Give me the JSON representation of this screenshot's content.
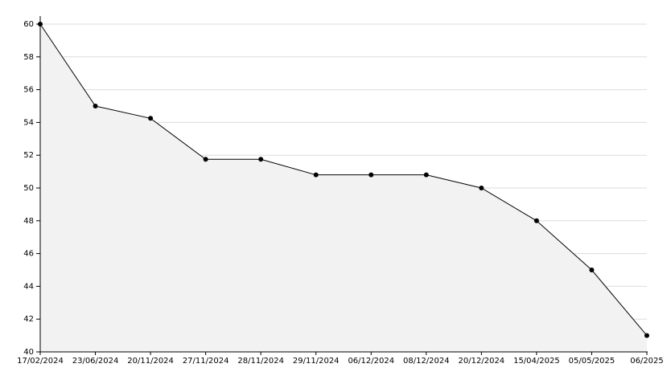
{
  "chart_data": {
    "type": "line",
    "categories": [
      "17/02/2024",
      "23/06/2024",
      "20/11/2024",
      "27/11/2024",
      "28/11/2024",
      "29/11/2024",
      "06/12/2024",
      "08/12/2024",
      "20/12/2024",
      "15/04/2025",
      "05/05/2025",
      "06/2025"
    ],
    "values": [
      60,
      55,
      54.25,
      51.75,
      51.75,
      50.8,
      50.8,
      50.8,
      50,
      48,
      45,
      41
    ],
    "color": "#000000",
    "fill": "#f2f2f2",
    "ylim": [
      40,
      60
    ],
    "yticks": [
      40,
      42,
      44,
      46,
      48,
      50,
      52,
      54,
      56,
      58,
      60
    ],
    "grid": true
  }
}
